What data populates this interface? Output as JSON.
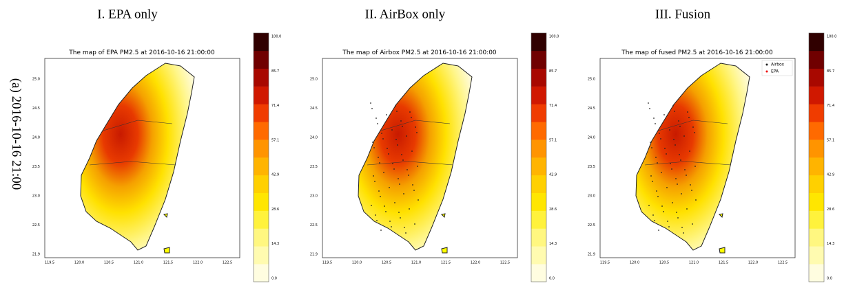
{
  "column_titles": [
    "I. EPA only",
    "II. AirBox only",
    "III. Fusion"
  ],
  "row_label": "(a) 2016-10-16 21:00",
  "panels": [
    {
      "title": "The map of EPA PM2.5 at 2016-10-16 21:00:00",
      "xticks": [
        "119.5",
        "120.0",
        "120.5",
        "121.0",
        "121.5",
        "122.0",
        "122.5"
      ],
      "yticks": [
        "25.0",
        "24.5",
        "24.0",
        "23.5",
        "23.0",
        "22.5",
        "21.9"
      ],
      "colorbar_ticks": [
        "0.0",
        "14.3",
        "28.6",
        "42.9",
        "57.1",
        "71.4",
        "85.7",
        "100.0"
      ]
    },
    {
      "title": "The map of Airbox PM2.5 at 2016-10-16 21:00:00",
      "xticks": [
        "119.5",
        "120.0",
        "120.5",
        "121.0",
        "121.5",
        "122.0",
        "122.5"
      ],
      "yticks": [
        "25.0",
        "24.5",
        "24.0",
        "23.5",
        "23.0",
        "22.5",
        "21.9"
      ],
      "colorbar_ticks": [
        "0.0",
        "14.3",
        "28.6",
        "42.9",
        "57.1",
        "71.4",
        "85.7",
        "100.0"
      ]
    },
    {
      "title": "The map of fused PM2.5 at 2016-10-16 21:00:00",
      "xticks": [
        "119.5",
        "120.0",
        "120.5",
        "121.0",
        "121.5",
        "122.0",
        "122.5"
      ],
      "yticks": [
        "25.0",
        "24.5",
        "24.0",
        "23.5",
        "23.0",
        "22.5",
        "21.9"
      ],
      "colorbar_ticks": [
        "0.0",
        "14.3",
        "28.6",
        "42.9",
        "57.1",
        "71.4",
        "85.7",
        "100.0"
      ],
      "legend": [
        "Airbox",
        "EPA"
      ]
    }
  ]
}
